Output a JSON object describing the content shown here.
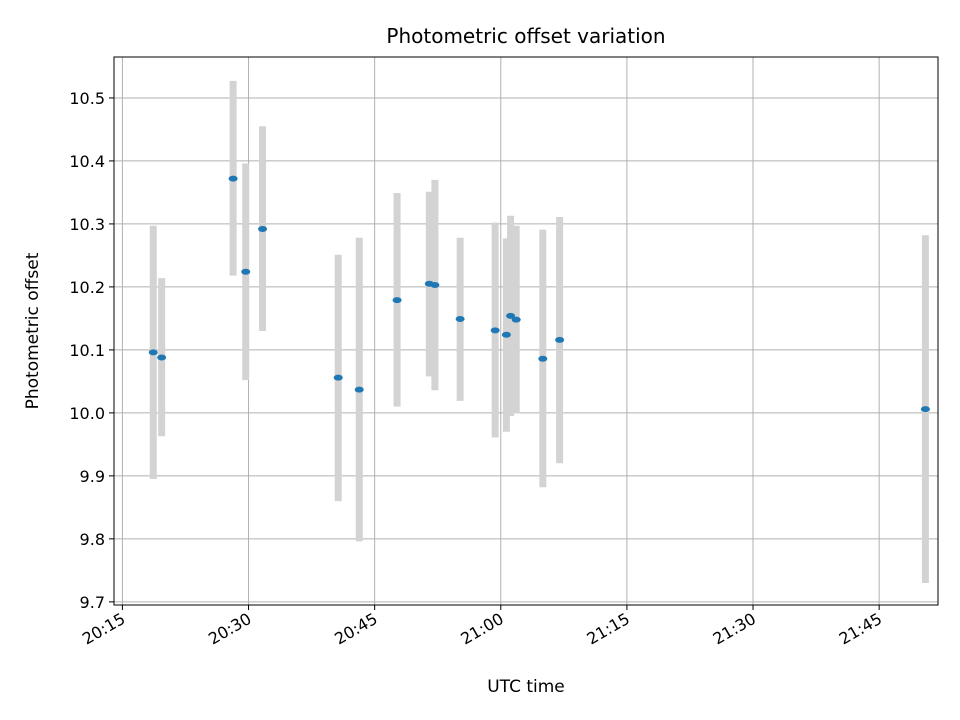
{
  "chart_data": {
    "type": "scatter",
    "title": "Photometric offset variation",
    "xlabel": "UTC time",
    "ylabel": "Photometric offset",
    "x_ticks": [
      "20:15",
      "20:30",
      "20:45",
      "21:00",
      "21:15",
      "21:30",
      "21:45"
    ],
    "y_ticks": [
      "9.7",
      "9.8",
      "9.9",
      "10.0",
      "10.1",
      "10.2",
      "10.3",
      "10.4",
      "10.5"
    ],
    "xlim": [
      "20:14:00",
      "21:52:00"
    ],
    "ylim": [
      9.695,
      10.565
    ],
    "grid": true,
    "colors": {
      "point": "#1f77b4",
      "errorbar": "#d3d3d3",
      "grid": "#b0b0b0"
    },
    "series": [
      {
        "points": [
          {
            "x": "20:18:40",
            "y": 10.096,
            "ylow": 9.895,
            "yhigh": 10.297
          },
          {
            "x": "20:19:40",
            "y": 10.088,
            "ylow": 9.963,
            "yhigh": 10.214
          },
          {
            "x": "20:28:10",
            "y": 10.372,
            "ylow": 10.218,
            "yhigh": 10.527
          },
          {
            "x": "20:29:40",
            "y": 10.224,
            "ylow": 10.052,
            "yhigh": 10.396
          },
          {
            "x": "20:31:40",
            "y": 10.292,
            "ylow": 10.13,
            "yhigh": 10.455
          },
          {
            "x": "20:40:40",
            "y": 10.056,
            "ylow": 9.86,
            "yhigh": 10.251
          },
          {
            "x": "20:43:10",
            "y": 10.037,
            "ylow": 9.796,
            "yhigh": 10.278
          },
          {
            "x": "20:47:40",
            "y": 10.179,
            "ylow": 10.01,
            "yhigh": 10.349
          },
          {
            "x": "20:51:30",
            "y": 10.205,
            "ylow": 10.058,
            "yhigh": 10.351
          },
          {
            "x": "20:52:10",
            "y": 10.203,
            "ylow": 10.036,
            "yhigh": 10.37
          },
          {
            "x": "20:55:10",
            "y": 10.149,
            "ylow": 10.019,
            "yhigh": 10.278
          },
          {
            "x": "20:59:20",
            "y": 10.131,
            "ylow": 9.961,
            "yhigh": 10.302
          },
          {
            "x": "21:00:40",
            "y": 10.124,
            "ylow": 9.97,
            "yhigh": 10.277
          },
          {
            "x": "21:01:10",
            "y": 10.154,
            "ylow": 9.995,
            "yhigh": 10.313
          },
          {
            "x": "21:01:50",
            "y": 10.148,
            "ylow": 9.999,
            "yhigh": 10.297
          },
          {
            "x": "21:05:00",
            "y": 10.086,
            "ylow": 9.882,
            "yhigh": 10.291
          },
          {
            "x": "21:07:00",
            "y": 10.116,
            "ylow": 9.92,
            "yhigh": 10.311
          },
          {
            "x": "21:50:30",
            "y": 10.006,
            "ylow": 9.73,
            "yhigh": 10.282
          }
        ]
      }
    ]
  }
}
